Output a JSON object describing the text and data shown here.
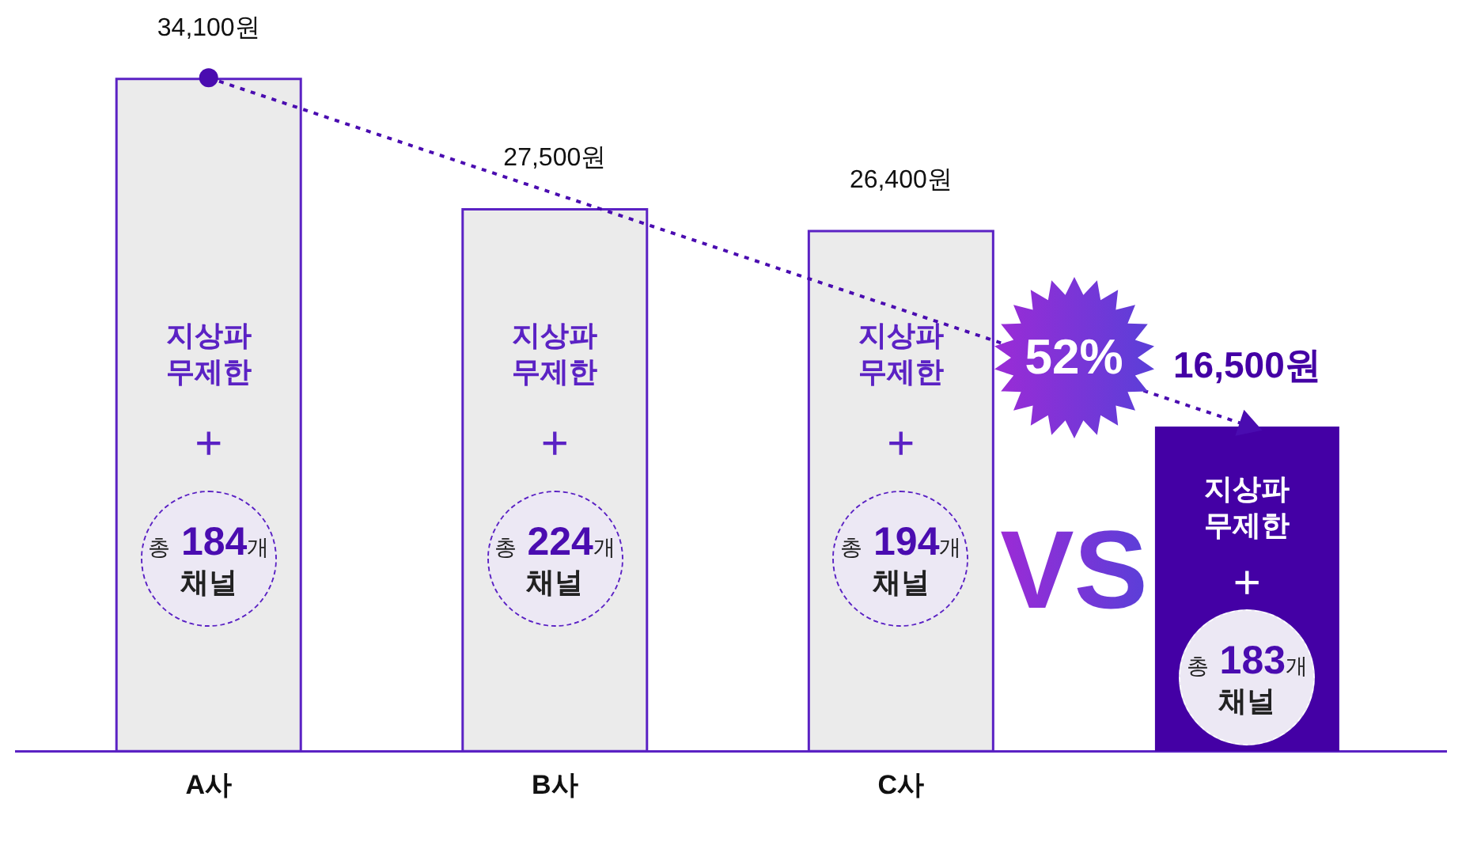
{
  "chart_data": {
    "type": "bar",
    "categories": [
      "A사",
      "B사",
      "C사",
      null
    ],
    "series": [
      {
        "values": [
          34100,
          27500,
          26400,
          16500
        ],
        "colors": [
          "#ebebeb",
          "#ebebeb",
          "#ebebeb",
          "#4400a5"
        ],
        "value_labels": [
          "34,100원",
          "27,500원",
          "26,400원",
          "16,500원"
        ]
      },
      {
        "type": "line",
        "values": [
          34100,
          null,
          null,
          16500
        ],
        "color": "#4a0cb0",
        "line_style": "dotted",
        "marker": "circle"
      }
    ],
    "annotations": [
      "지상파\n무제한\n+\n총 184개\n채널",
      "지상파\n무제한\n+\n총 224개\n채널",
      "지상파\n무제한\n+\n총 194개\n채널",
      "지상파\n무제한\n+\n총 183개\n채널",
      "VS",
      "52%"
    ],
    "tick_labels": "x",
    "grid": false,
    "legend": false
  }
}
